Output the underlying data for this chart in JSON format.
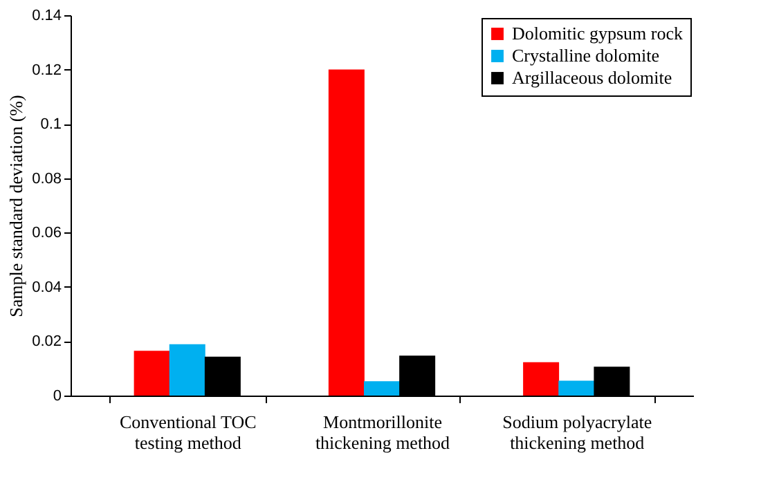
{
  "chart_data": {
    "type": "bar",
    "ylabel": "Sample standard deviation (%)",
    "categories": [
      "Conventional TOC testing method",
      "Montmorillonite thickening method",
      "Sodium polyacrylate thickening method"
    ],
    "series": [
      {
        "name": "Dolomitic gypsum rock",
        "color": "#ff0000",
        "values": [
          0.0165,
          0.12,
          0.0123
        ]
      },
      {
        "name": "Crystalline dolomite",
        "color": "#00b0f0",
        "values": [
          0.0189,
          0.0053,
          0.0055
        ]
      },
      {
        "name": "Argillaceous dolomite",
        "color": "#000000",
        "values": [
          0.0143,
          0.0147,
          0.0106
        ]
      }
    ],
    "ylim": [
      0,
      0.14
    ],
    "yticks": [
      0,
      0.02,
      0.04,
      0.06,
      0.08,
      0.1,
      0.12,
      0.14
    ],
    "grid": false,
    "legend": "top right"
  }
}
